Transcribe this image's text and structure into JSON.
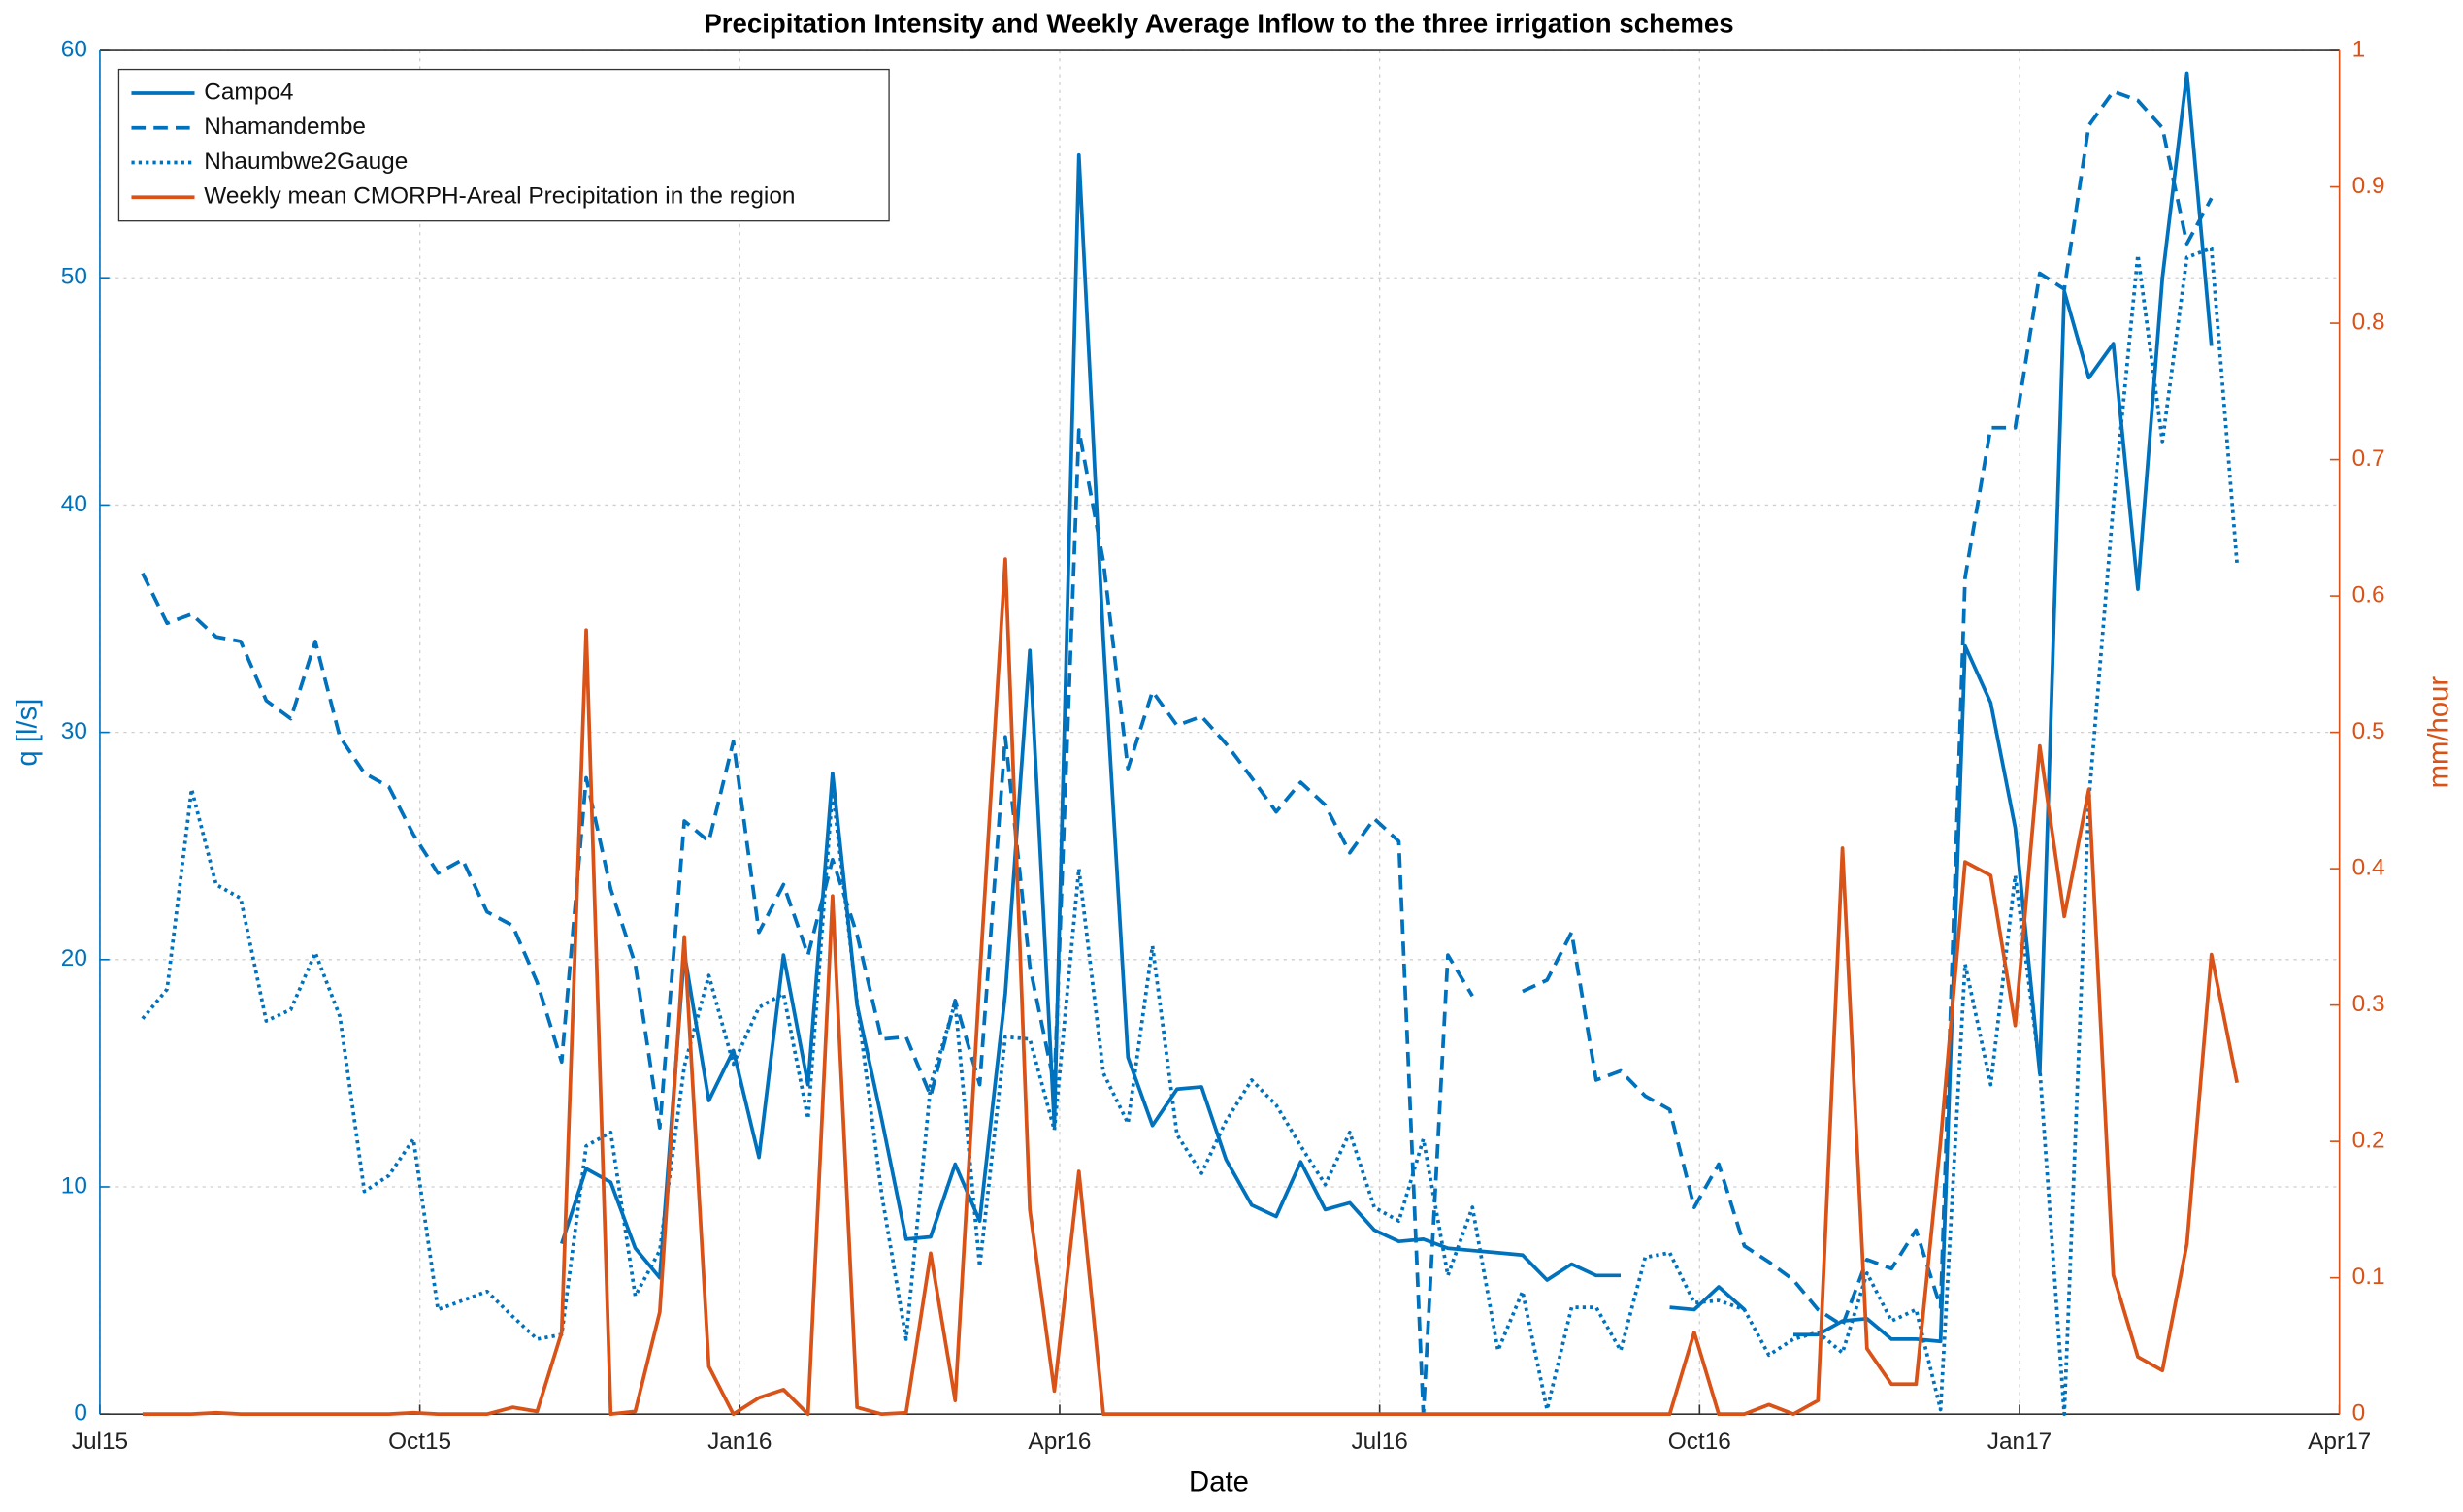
{
  "chart_data": {
    "type": "line",
    "title": "Precipitation Intensity and Weekly Average Inflow to the three irrigation schemes",
    "x_label": "Date",
    "y_label": "q [l/s]",
    "y2_label": "mm/hour",
    "x": [
      0.4,
      0.63,
      0.86,
      1.09,
      1.32,
      1.56,
      1.79,
      2.02,
      2.25,
      2.48,
      2.71,
      2.94,
      3.17,
      3.4,
      3.63,
      3.87,
      4.1,
      4.33,
      4.56,
      4.79,
      5.02,
      5.25,
      5.48,
      5.71,
      5.94,
      6.18,
      6.41,
      6.64,
      6.87,
      7.1,
      7.33,
      7.56,
      7.79,
      8.02,
      8.25,
      8.49,
      8.72,
      8.95,
      9.18,
      9.41,
      9.64,
      9.87,
      10.1,
      10.33,
      10.56,
      10.8,
      11.03,
      11.26,
      11.49,
      11.72,
      11.95,
      12.18,
      12.41,
      12.64,
      12.87,
      13.11,
      13.34,
      13.57,
      13.8,
      14.03,
      14.26,
      14.49,
      14.72,
      14.95,
      15.18,
      15.42,
      15.65,
      15.88,
      16.11,
      16.34,
      16.57,
      16.8,
      17.03,
      17.26,
      17.49,
      17.73,
      17.96,
      18.19,
      18.42,
      18.65,
      18.88,
      19.11,
      19.34,
      19.57,
      19.8,
      20.04
    ],
    "xlim": [
      0,
      21
    ],
    "xticks": [
      {
        "value": 0,
        "label": "Jul15"
      },
      {
        "value": 3,
        "label": "Oct15"
      },
      {
        "value": 6,
        "label": "Jan16"
      },
      {
        "value": 9,
        "label": "Apr16"
      },
      {
        "value": 12,
        "label": "Jul16"
      },
      {
        "value": 15,
        "label": "Oct16"
      },
      {
        "value": 18,
        "label": "Jan17"
      },
      {
        "value": 21,
        "label": "Apr17"
      }
    ],
    "ylim": [
      0,
      60
    ],
    "yticks": [
      0,
      10,
      20,
      30,
      40,
      50,
      60
    ],
    "y2lim": [
      0,
      1
    ],
    "y2ticks": [
      0,
      0.1,
      0.2,
      0.3,
      0.4,
      0.5,
      0.6,
      0.7,
      0.8,
      0.9,
      1
    ],
    "grid": true,
    "legend": "upper left",
    "series": [
      {
        "name": "Campo4",
        "color": "#0072bd",
        "style": "solid",
        "values": [
          null,
          null,
          null,
          null,
          null,
          null,
          null,
          null,
          null,
          null,
          null,
          null,
          null,
          null,
          null,
          null,
          null,
          7.5,
          10.8,
          10.2,
          7.3,
          6,
          20.3,
          13.8,
          16,
          11.3,
          20.2,
          14.5,
          28.2,
          18,
          13,
          7.7,
          7.8,
          11,
          8.5,
          18.5,
          33.6,
          12.7,
          55.4,
          34,
          15.7,
          12.7,
          14.3,
          14.4,
          11.2,
          9.2,
          8.7,
          11.1,
          9,
          9.3,
          8.1,
          7.6,
          7.7,
          7.3,
          7.2,
          7.1,
          7,
          5.9,
          6.6,
          6.1,
          6.1,
          null,
          4.7,
          4.6,
          5.6,
          4.6,
          null,
          3.5,
          3.5,
          4.1,
          4.2,
          3.3,
          3.3,
          3.2,
          33.8,
          31.3,
          25.8,
          15,
          49.4,
          45.6,
          47.1,
          36.3,
          50,
          59,
          47,
          null
        ]
      },
      {
        "name": "Nhamandembe",
        "color": "#0072bd",
        "style": "dashed",
        "values": [
          37,
          34.8,
          35.2,
          34.2,
          34,
          31.4,
          30.6,
          34,
          29.8,
          28.2,
          27.6,
          25.5,
          23.8,
          24.4,
          22.1,
          21.5,
          19,
          15.5,
          28,
          23.1,
          19.8,
          12.6,
          26.1,
          25.2,
          29.6,
          21.2,
          23.3,
          20.2,
          24.4,
          21.1,
          16.5,
          16.6,
          14,
          18.2,
          14.5,
          29.8,
          19.7,
          14.5,
          43.3,
          37.5,
          28.4,
          31.8,
          30.3,
          30.7,
          29.5,
          28,
          26.5,
          27.8,
          26.8,
          24.7,
          26.2,
          25.2,
          0,
          20.2,
          18.4,
          null,
          18.6,
          19.1,
          21.2,
          14.7,
          15.1,
          14,
          13.4,
          9.1,
          11,
          7.4,
          6.7,
          5.9,
          4.6,
          3.9,
          6.8,
          6.4,
          8.1,
          4.7,
          36.8,
          43.4,
          43.4,
          50.2,
          49.5,
          56.7,
          58.2,
          57.8,
          56.6,
          51.5,
          53.5,
          null
        ]
      },
      {
        "name": "Nhaumbwe2Gauge",
        "color": "#0072bd",
        "style": "dotted",
        "values": [
          17.4,
          18.7,
          27.5,
          23.3,
          22.7,
          17.3,
          17.8,
          20.3,
          17.5,
          9.8,
          10.5,
          12.1,
          4.6,
          5,
          5.4,
          4.3,
          3.3,
          3.5,
          11.8,
          12.4,
          5.2,
          7.2,
          15.3,
          19.3,
          15.4,
          17.9,
          18.5,
          13,
          27.5,
          18.1,
          9.7,
          3.3,
          14.5,
          18.1,
          6.5,
          16.6,
          16.5,
          12.5,
          24,
          15,
          12.8,
          20.6,
          12.3,
          10.6,
          12.9,
          14.7,
          13.6,
          11.8,
          10.1,
          12.4,
          9.1,
          8.5,
          12.1,
          6.1,
          9.1,
          2.8,
          5.4,
          0.2,
          4.7,
          4.7,
          2.8,
          6.9,
          7.1,
          4.9,
          5,
          4.6,
          2.6,
          3.3,
          3.6,
          2.7,
          6.2,
          4.1,
          4.6,
          0.2,
          19.8,
          14.5,
          23.7,
          15.2,
          0,
          27,
          40,
          51,
          42.8,
          50.9,
          51.3,
          37.4
        ]
      },
      {
        "name": "Weekly mean CMORPH-Areal Precipitation in the region",
        "color": "#d95319",
        "style": "solid",
        "axis": "y2",
        "values": [
          0,
          0,
          0,
          0.001,
          0,
          0,
          0,
          0,
          0,
          0,
          0,
          0.001,
          0,
          0,
          0,
          0.005,
          0.002,
          0.06,
          0.575,
          0,
          0.002,
          0.075,
          0.35,
          0.035,
          0,
          0.012,
          0.018,
          0,
          0.38,
          0.005,
          0,
          0.001,
          0.118,
          0.01,
          0.32,
          0.627,
          0.15,
          0.017,
          0.178,
          0,
          0,
          0,
          0,
          0,
          0,
          0,
          0,
          0,
          0,
          0,
          0,
          0,
          0,
          0,
          0,
          0,
          0,
          0,
          0,
          0,
          0,
          0,
          0,
          0.06,
          0,
          0,
          0.007,
          0,
          0.01,
          0.415,
          0.048,
          0.022,
          0.022,
          0.2,
          0.405,
          0.395,
          0.285,
          0.49,
          0.365,
          0.458,
          0.102,
          0.042,
          0.032,
          0.125,
          0.337,
          0.243
        ]
      }
    ]
  }
}
